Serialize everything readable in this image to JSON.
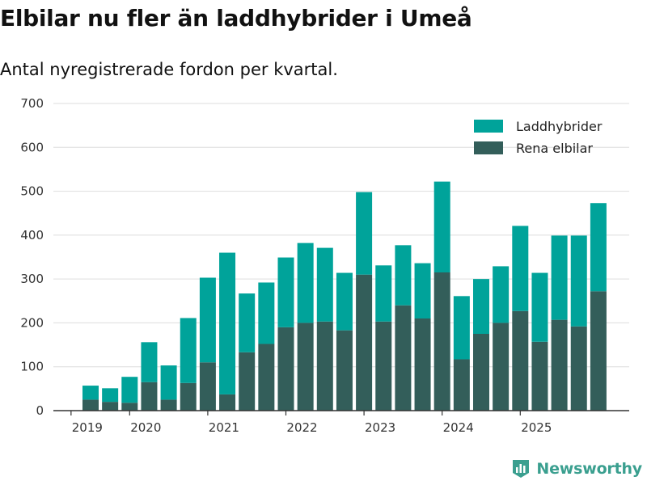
{
  "title": "Elbilar nu fler än laddhybrider i Umeå",
  "subtitle": "Antal nyregistrerade fordon per kvartal.",
  "brand": "Newsworthy",
  "colors": {
    "laddhybrider": "#00a39a",
    "rena_elbilar": "#335e5a",
    "grid": "#dddddd",
    "axis": "#333333",
    "brand": "#3a9f8f"
  },
  "chart_data": {
    "type": "bar",
    "stacked": true,
    "title": "Elbilar nu fler än laddhybrider i Umeå",
    "subtitle": "Antal nyregistrerade fordon per kvartal.",
    "xlabel": "",
    "ylabel": "",
    "ylim": [
      0,
      700
    ],
    "yticks": [
      0,
      100,
      200,
      300,
      400,
      500,
      600,
      700
    ],
    "xticks": [
      "2019",
      "2020",
      "2021",
      "2022",
      "2023",
      "2024",
      "2025"
    ],
    "legend_position": "top-right",
    "categories": [
      "2019 Q2",
      "2019 Q3",
      "2019 Q4",
      "2020 Q1",
      "2020 Q2",
      "2020 Q3",
      "2020 Q4",
      "2021 Q1",
      "2021 Q2",
      "2021 Q3",
      "2021 Q4",
      "2022 Q1",
      "2022 Q2",
      "2022 Q3",
      "2022 Q4",
      "2023 Q1",
      "2023 Q2",
      "2023 Q3",
      "2023 Q4",
      "2024 Q1",
      "2024 Q2",
      "2024 Q3",
      "2024 Q4",
      "2025 Q1",
      "2025 Q2",
      "2025 Q3",
      "2025 Q4"
    ],
    "series": [
      {
        "name": "Rena elbilar",
        "color": "#335e5a",
        "values": [
          25,
          20,
          18,
          65,
          25,
          63,
          110,
          37,
          133,
          152,
          190,
          200,
          203,
          183,
          310,
          203,
          240,
          210,
          315,
          117,
          175,
          200,
          227,
          157,
          207,
          192,
          272
        ]
      },
      {
        "name": "Laddhybrider",
        "color": "#00a39a",
        "values": [
          32,
          31,
          59,
          91,
          78,
          148,
          193,
          323,
          134,
          140,
          159,
          182,
          168,
          131,
          188,
          128,
          137,
          126,
          207,
          144,
          125,
          129,
          194,
          157,
          192,
          207,
          201
        ]
      }
    ]
  }
}
